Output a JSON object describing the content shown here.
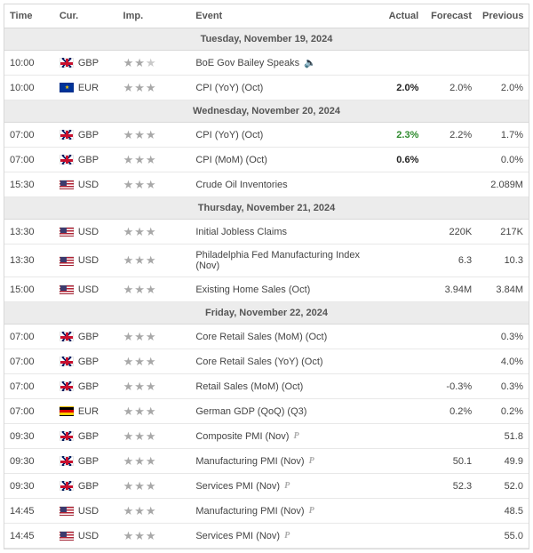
{
  "columns": {
    "time": "Time",
    "cur": "Cur.",
    "imp": "Imp.",
    "event": "Event",
    "actual": "Actual",
    "forecast": "Forecast",
    "previous": "Previous"
  },
  "days": [
    {
      "header": "Tuesday, November 19, 2024",
      "rows": [
        {
          "time": "10:00",
          "cur": "GBP",
          "flag": "gbp",
          "imp": 2,
          "event": "BoE Gov Bailey Speaks",
          "speech": true,
          "actual": "",
          "actual_class": "",
          "forecast": "",
          "previous": ""
        },
        {
          "time": "10:00",
          "cur": "EUR",
          "flag": "eur",
          "imp": 3,
          "event": "CPI (YoY) (Oct)",
          "speech": false,
          "actual": "2.0%",
          "actual_class": "actual-bold",
          "forecast": "2.0%",
          "previous": "2.0%"
        }
      ]
    },
    {
      "header": "Wednesday, November 20, 2024",
      "rows": [
        {
          "time": "07:00",
          "cur": "GBP",
          "flag": "gbp",
          "imp": 3,
          "event": "CPI (YoY) (Oct)",
          "speech": false,
          "actual": "2.3%",
          "actual_class": "actual-up",
          "forecast": "2.2%",
          "previous": "1.7%"
        },
        {
          "time": "07:00",
          "cur": "GBP",
          "flag": "gbp",
          "imp": 3,
          "event": "CPI (MoM) (Oct)",
          "speech": false,
          "actual": "0.6%",
          "actual_class": "actual-bold",
          "forecast": "",
          "previous": "0.0%"
        },
        {
          "time": "15:30",
          "cur": "USD",
          "flag": "usd",
          "imp": 3,
          "event": "Crude Oil Inventories",
          "speech": false,
          "actual": "",
          "actual_class": "",
          "forecast": "",
          "previous": "2.089M"
        }
      ]
    },
    {
      "header": "Thursday, November 21, 2024",
      "rows": [
        {
          "time": "13:30",
          "cur": "USD",
          "flag": "usd",
          "imp": 3,
          "event": "Initial Jobless Claims",
          "speech": false,
          "actual": "",
          "actual_class": "",
          "forecast": "220K",
          "previous": "217K"
        },
        {
          "time": "13:30",
          "cur": "USD",
          "flag": "usd",
          "imp": 3,
          "event": "Philadelphia Fed Manufacturing Index (Nov)",
          "speech": false,
          "actual": "",
          "actual_class": "",
          "forecast": "6.3",
          "previous": "10.3"
        },
        {
          "time": "15:00",
          "cur": "USD",
          "flag": "usd",
          "imp": 3,
          "event": "Existing Home Sales (Oct)",
          "speech": false,
          "actual": "",
          "actual_class": "",
          "forecast": "3.94M",
          "previous": "3.84M"
        }
      ]
    },
    {
      "header": "Friday, November 22, 2024",
      "rows": [
        {
          "time": "07:00",
          "cur": "GBP",
          "flag": "gbp",
          "imp": 3,
          "event": "Core Retail Sales (MoM) (Oct)",
          "speech": false,
          "actual": "",
          "actual_class": "",
          "forecast": "",
          "previous": "0.3%"
        },
        {
          "time": "07:00",
          "cur": "GBP",
          "flag": "gbp",
          "imp": 3,
          "event": "Core Retail Sales (YoY) (Oct)",
          "speech": false,
          "actual": "",
          "actual_class": "",
          "forecast": "",
          "previous": "4.0%"
        },
        {
          "time": "07:00",
          "cur": "GBP",
          "flag": "gbp",
          "imp": 3,
          "event": "Retail Sales (MoM) (Oct)",
          "speech": false,
          "actual": "",
          "actual_class": "",
          "forecast": "-0.3%",
          "previous": "0.3%"
        },
        {
          "time": "07:00",
          "cur": "EUR",
          "flag": "deu",
          "imp": 3,
          "event": "German GDP (QoQ) (Q3)",
          "speech": false,
          "actual": "",
          "actual_class": "",
          "forecast": "0.2%",
          "previous": "0.2%"
        },
        {
          "time": "09:30",
          "cur": "GBP",
          "flag": "gbp",
          "imp": 3,
          "event": "Composite PMI (Nov)",
          "prelim": true,
          "speech": false,
          "actual": "",
          "actual_class": "",
          "forecast": "",
          "previous": "51.8"
        },
        {
          "time": "09:30",
          "cur": "GBP",
          "flag": "gbp",
          "imp": 3,
          "event": "Manufacturing PMI (Nov)",
          "prelim": true,
          "speech": false,
          "actual": "",
          "actual_class": "",
          "forecast": "50.1",
          "previous": "49.9"
        },
        {
          "time": "09:30",
          "cur": "GBP",
          "flag": "gbp",
          "imp": 3,
          "event": "Services PMI (Nov)",
          "prelim": true,
          "speech": false,
          "actual": "",
          "actual_class": "",
          "forecast": "52.3",
          "previous": "52.0"
        },
        {
          "time": "14:45",
          "cur": "USD",
          "flag": "usd",
          "imp": 3,
          "event": "Manufacturing PMI (Nov)",
          "prelim": true,
          "speech": false,
          "actual": "",
          "actual_class": "",
          "forecast": "",
          "previous": "48.5"
        },
        {
          "time": "14:45",
          "cur": "USD",
          "flag": "usd",
          "imp": 3,
          "event": "Services PMI (Nov)",
          "prelim": true,
          "speech": false,
          "actual": "",
          "actual_class": "",
          "forecast": "",
          "previous": "55.0"
        }
      ]
    }
  ],
  "style": {
    "header_bg": "#ececec",
    "border_color": "#d8d8d8",
    "actual_up_color": "#2e8b2e"
  }
}
